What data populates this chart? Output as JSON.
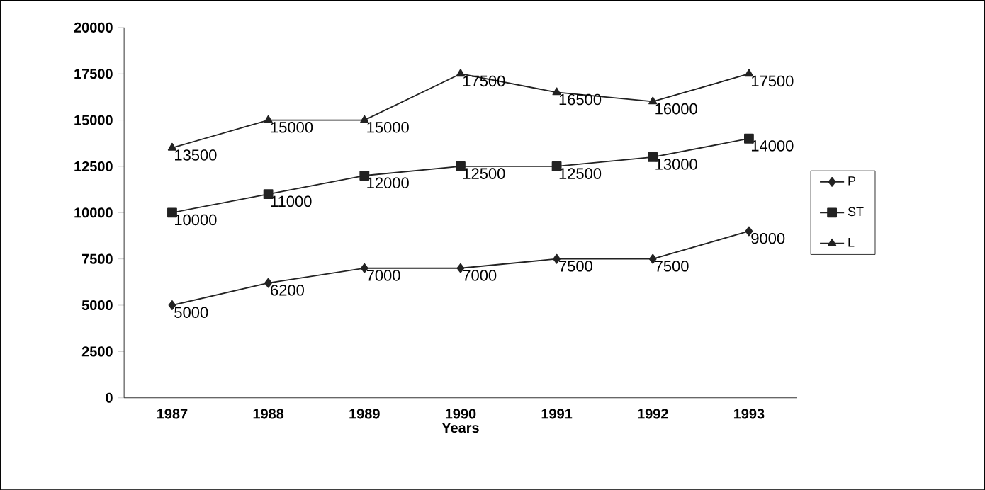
{
  "chart_data": {
    "type": "line",
    "xlabel": "Years",
    "categories": [
      "1987",
      "1988",
      "1989",
      "1990",
      "1991",
      "1992",
      "1993"
    ],
    "series": [
      {
        "name": "P",
        "color": "#222222",
        "marker": "diamond",
        "values": [
          5000,
          6200,
          7000,
          7000,
          7500,
          7500,
          9000
        ]
      },
      {
        "name": "ST",
        "color": "#222222",
        "marker": "square",
        "values": [
          10000,
          11000,
          12000,
          12500,
          12500,
          13000,
          14000
        ]
      },
      {
        "name": "L",
        "color": "#222222",
        "marker": "triangle",
        "values": [
          13500,
          15000,
          15000,
          17500,
          16500,
          16000,
          17500
        ]
      }
    ],
    "ylim": [
      0,
      20000
    ],
    "yticks": [
      0,
      2500,
      5000,
      7500,
      10000,
      12500,
      15000,
      17500,
      20000
    ],
    "grid": false,
    "legend": "right",
    "data_labels": true
  }
}
